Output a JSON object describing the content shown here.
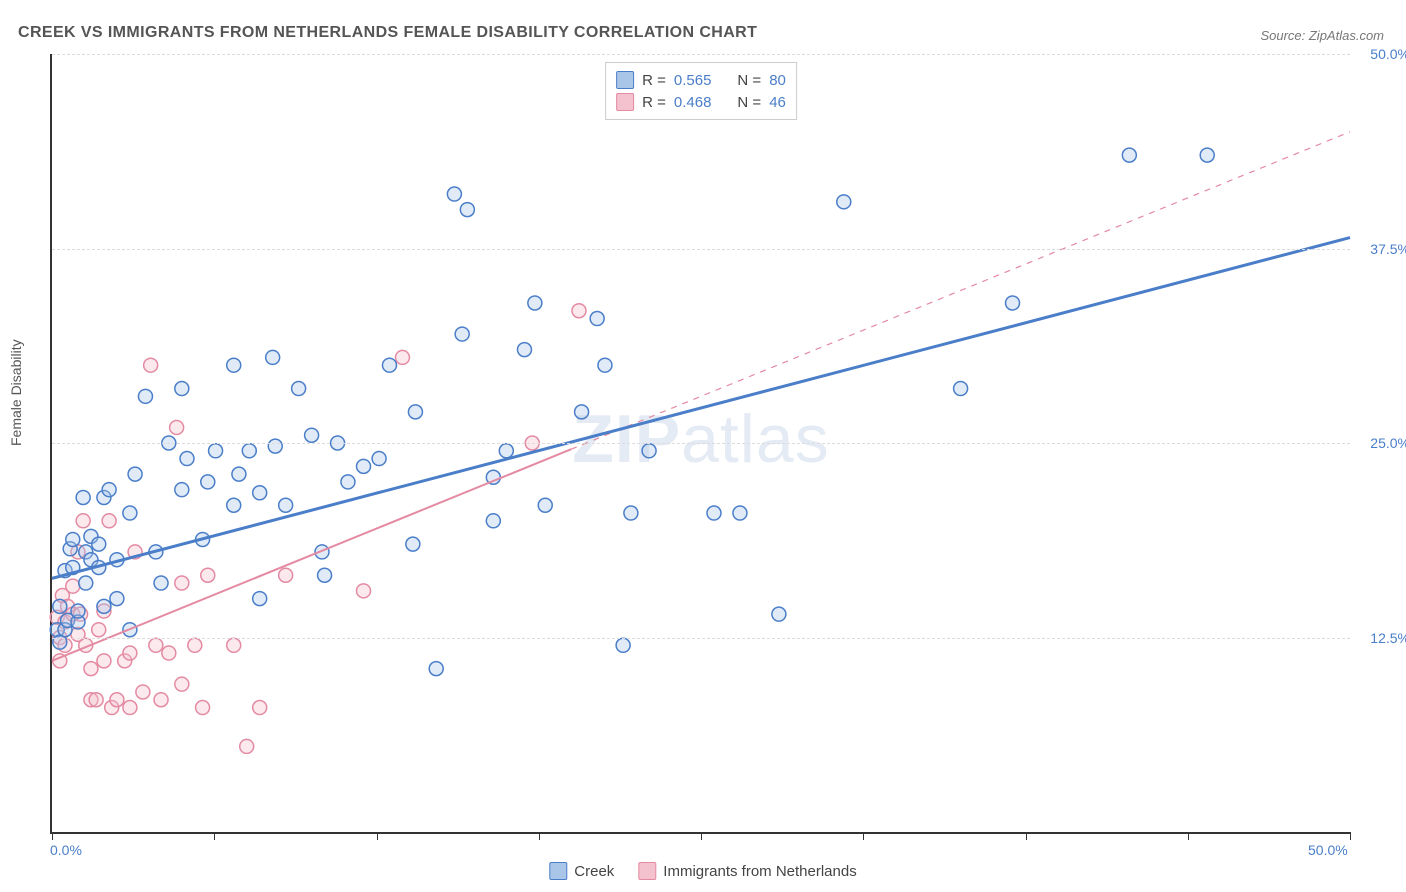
{
  "title": "CREEK VS IMMIGRANTS FROM NETHERLANDS FEMALE DISABILITY CORRELATION CHART",
  "source_label": "Source: ZipAtlas.com",
  "watermark": {
    "bold": "ZIP",
    "light": "atlas"
  },
  "y_axis_label": "Female Disability",
  "chart": {
    "type": "scatter",
    "xlim": [
      0,
      50
    ],
    "ylim": [
      0,
      50
    ],
    "x_tick_positions": [
      0,
      6.25,
      12.5,
      18.75,
      25,
      31.25,
      37.5,
      43.75,
      50
    ],
    "x_start_label": "0.0%",
    "x_end_label": "50.0%",
    "y_ticks": [
      {
        "value": 12.5,
        "label": "12.5%"
      },
      {
        "value": 25.0,
        "label": "25.0%"
      },
      {
        "value": 37.5,
        "label": "37.5%"
      },
      {
        "value": 50.0,
        "label": "50.0%"
      }
    ],
    "grid_color": "#dcdcdc",
    "background_color": "#ffffff",
    "series": [
      {
        "name": "Creek",
        "color_stroke": "#4a7ec9",
        "color_fill": "#a9c5e8",
        "marker_radius": 7,
        "R": "0.565",
        "N": "80",
        "trend": {
          "x1": 0,
          "y1": 16.3,
          "x2": 50,
          "y2": 38.2,
          "solid_until_x": 50,
          "stroke_width": 3
        },
        "points": [
          [
            0.2,
            13.0
          ],
          [
            0.3,
            14.5
          ],
          [
            0.3,
            12.2
          ],
          [
            0.5,
            16.8
          ],
          [
            0.5,
            13.0
          ],
          [
            0.6,
            13.6
          ],
          [
            0.7,
            18.2
          ],
          [
            0.8,
            17.0
          ],
          [
            0.8,
            18.8
          ],
          [
            1.0,
            13.5
          ],
          [
            1.0,
            14.2
          ],
          [
            1.2,
            21.5
          ],
          [
            1.3,
            18.0
          ],
          [
            1.3,
            16.0
          ],
          [
            1.5,
            17.5
          ],
          [
            1.5,
            19.0
          ],
          [
            1.8,
            17.0
          ],
          [
            1.8,
            18.5
          ],
          [
            2.0,
            21.5
          ],
          [
            2.0,
            14.5
          ],
          [
            2.2,
            22.0
          ],
          [
            2.5,
            15.0
          ],
          [
            2.5,
            17.5
          ],
          [
            3.0,
            13.0
          ],
          [
            3.0,
            20.5
          ],
          [
            3.2,
            23.0
          ],
          [
            3.6,
            28.0
          ],
          [
            4.0,
            18.0
          ],
          [
            4.2,
            16.0
          ],
          [
            4.5,
            25.0
          ],
          [
            5.0,
            22.0
          ],
          [
            5.0,
            28.5
          ],
          [
            5.2,
            24.0
          ],
          [
            5.8,
            18.8
          ],
          [
            6.0,
            22.5
          ],
          [
            6.3,
            24.5
          ],
          [
            7.0,
            21.0
          ],
          [
            7.0,
            30.0
          ],
          [
            7.2,
            23.0
          ],
          [
            7.6,
            24.5
          ],
          [
            8.0,
            21.8
          ],
          [
            8.0,
            15.0
          ],
          [
            8.5,
            30.5
          ],
          [
            8.6,
            24.8
          ],
          [
            9.0,
            21.0
          ],
          [
            9.5,
            28.5
          ],
          [
            10.0,
            25.5
          ],
          [
            10.4,
            18.0
          ],
          [
            10.5,
            16.5
          ],
          [
            11.0,
            25.0
          ],
          [
            11.4,
            22.5
          ],
          [
            12.0,
            23.5
          ],
          [
            12.6,
            24.0
          ],
          [
            13.0,
            30.0
          ],
          [
            13.9,
            18.5
          ],
          [
            14.0,
            27.0
          ],
          [
            14.8,
            10.5
          ],
          [
            15.5,
            41.0
          ],
          [
            15.8,
            32.0
          ],
          [
            16.0,
            40.0
          ],
          [
            17.0,
            22.8
          ],
          [
            17.0,
            20.0
          ],
          [
            17.5,
            24.5
          ],
          [
            18.2,
            31.0
          ],
          [
            18.6,
            34.0
          ],
          [
            19.0,
            21.0
          ],
          [
            20.4,
            27.0
          ],
          [
            21.0,
            33.0
          ],
          [
            21.3,
            30.0
          ],
          [
            22.0,
            12.0
          ],
          [
            22.3,
            20.5
          ],
          [
            23.0,
            24.5
          ],
          [
            25.5,
            20.5
          ],
          [
            26.5,
            20.5
          ],
          [
            28.0,
            14.0
          ],
          [
            30.5,
            40.5
          ],
          [
            35.0,
            28.5
          ],
          [
            37.0,
            34.0
          ],
          [
            41.5,
            43.5
          ],
          [
            44.5,
            43.5
          ]
        ]
      },
      {
        "name": "Immigrants from Netherlands",
        "color_stroke": "#e48aa2",
        "color_fill": "#f4c1ce",
        "marker_radius": 7,
        "R": "0.468",
        "N": "46",
        "trend": {
          "x1": 0,
          "y1": 11.0,
          "x2": 50,
          "y2": 45.0,
          "solid_until_x": 20,
          "stroke_width": 2
        },
        "points": [
          [
            0.2,
            13.8
          ],
          [
            0.3,
            12.5
          ],
          [
            0.3,
            11.0
          ],
          [
            0.4,
            15.2
          ],
          [
            0.5,
            12.0
          ],
          [
            0.5,
            13.5
          ],
          [
            0.6,
            14.5
          ],
          [
            0.8,
            14.0
          ],
          [
            0.8,
            15.8
          ],
          [
            1.0,
            12.7
          ],
          [
            1.0,
            18.0
          ],
          [
            1.1,
            14.0
          ],
          [
            1.2,
            20.0
          ],
          [
            1.3,
            12.0
          ],
          [
            1.5,
            8.5
          ],
          [
            1.5,
            10.5
          ],
          [
            1.7,
            8.5
          ],
          [
            1.8,
            13.0
          ],
          [
            2.0,
            11.0
          ],
          [
            2.0,
            14.2
          ],
          [
            2.2,
            20.0
          ],
          [
            2.3,
            8.0
          ],
          [
            2.5,
            8.5
          ],
          [
            2.8,
            11.0
          ],
          [
            3.0,
            11.5
          ],
          [
            3.0,
            8.0
          ],
          [
            3.2,
            18.0
          ],
          [
            3.5,
            9.0
          ],
          [
            3.8,
            30.0
          ],
          [
            4.0,
            12.0
          ],
          [
            4.2,
            8.5
          ],
          [
            4.5,
            11.5
          ],
          [
            4.8,
            26.0
          ],
          [
            5.0,
            9.5
          ],
          [
            5.0,
            16.0
          ],
          [
            5.5,
            12.0
          ],
          [
            5.8,
            8.0
          ],
          [
            6.0,
            16.5
          ],
          [
            7.0,
            12.0
          ],
          [
            7.5,
            5.5
          ],
          [
            8.0,
            8.0
          ],
          [
            9.0,
            16.5
          ],
          [
            12.0,
            15.5
          ],
          [
            13.5,
            30.5
          ],
          [
            18.5,
            25.0
          ],
          [
            20.3,
            33.5
          ]
        ]
      }
    ]
  },
  "legend_bottom": [
    {
      "label": "Creek",
      "fill": "#a9c5e8",
      "stroke": "#4a7ec9"
    },
    {
      "label": "Immigrants from Netherlands",
      "fill": "#f4c1ce",
      "stroke": "#e48aa2"
    }
  ]
}
